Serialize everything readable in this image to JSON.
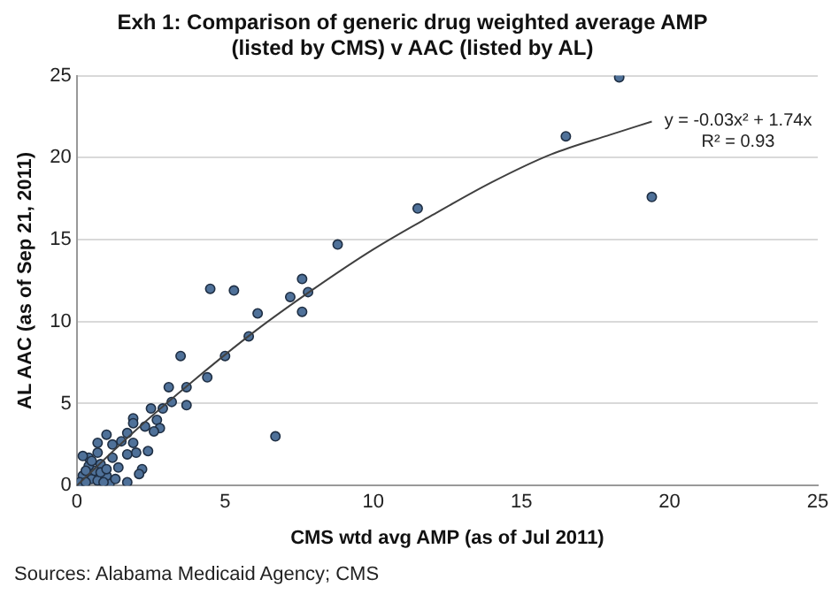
{
  "chart_data": {
    "type": "scatter",
    "title": "Exh 1: Comparison of generic drug weighted average AMP\n(listed by CMS) v AAC (listed by AL)",
    "xlabel": "CMS wtd avg AMP (as of Jul 2011)",
    "ylabel": "AL AAC (as of Sep 21, 2011)",
    "xlim": [
      0,
      25
    ],
    "xticks": [
      0,
      5,
      10,
      15,
      20,
      25
    ],
    "ylim": [
      0,
      25
    ],
    "yticks": [
      0,
      5,
      10,
      15,
      20,
      25
    ],
    "grid": "y",
    "legend": false,
    "marker": "circle",
    "annotations": [
      "y = -0.03x² + 1.74x",
      "R² = 0.93",
      "Sources: Alabama Medicaid Agency; CMS"
    ],
    "series": [
      {
        "color": "#4f7199",
        "x": [
          18.3,
          16.5,
          19.4,
          11.5,
          8.8,
          7.6,
          4.5,
          5.3,
          7.2,
          7.8,
          6.1,
          7.6,
          5.8,
          3.5,
          5.0,
          4.4,
          3.1,
          3.7,
          3.2,
          3.7,
          2.9,
          2.5,
          6.7,
          1.9,
          1.9,
          2.7,
          2.8,
          2.6,
          2.3,
          1.0,
          1.7,
          1.5,
          1.9,
          0.7,
          1.2,
          2.4,
          2.0,
          1.7,
          2.2,
          2.1,
          1.7,
          1.1,
          0.4,
          0.8,
          1.2,
          1.4,
          1.0,
          0.1,
          0.2,
          0.5,
          0.6,
          0.4,
          0.7,
          0.8,
          0.1,
          0.3,
          0.9,
          0.3,
          0.5,
          0.7,
          1.0,
          1.3,
          0.2
        ],
        "values": [
          24.9,
          21.3,
          17.6,
          16.9,
          14.7,
          12.6,
          12.0,
          11.9,
          11.5,
          11.8,
          10.5,
          10.6,
          9.1,
          7.9,
          7.9,
          6.6,
          6.0,
          6.0,
          5.1,
          4.9,
          4.7,
          4.7,
          3.0,
          4.1,
          3.8,
          4.0,
          3.5,
          3.3,
          3.6,
          3.1,
          3.2,
          2.7,
          2.6,
          2.6,
          2.5,
          2.1,
          2.0,
          1.9,
          1.0,
          0.7,
          0.2,
          0.1,
          1.7,
          1.3,
          1.7,
          1.1,
          0.6,
          0.1,
          0.6,
          0.4,
          0.9,
          1.2,
          0.3,
          0.8,
          0.2,
          0.9,
          0.2,
          0.2,
          1.5,
          2.0,
          1.0,
          0.4,
          1.8
        ]
      },
      {
        "type": "line",
        "color": "#404040",
        "marker": "none",
        "x": [
          0,
          2,
          4,
          6,
          8,
          10,
          12,
          14,
          16,
          18,
          19.4
        ],
        "values": [
          0,
          3.4,
          6.5,
          9.4,
          12.0,
          14.4,
          16.5,
          18.5,
          20.2,
          21.4,
          22.2
        ]
      }
    ]
  }
}
